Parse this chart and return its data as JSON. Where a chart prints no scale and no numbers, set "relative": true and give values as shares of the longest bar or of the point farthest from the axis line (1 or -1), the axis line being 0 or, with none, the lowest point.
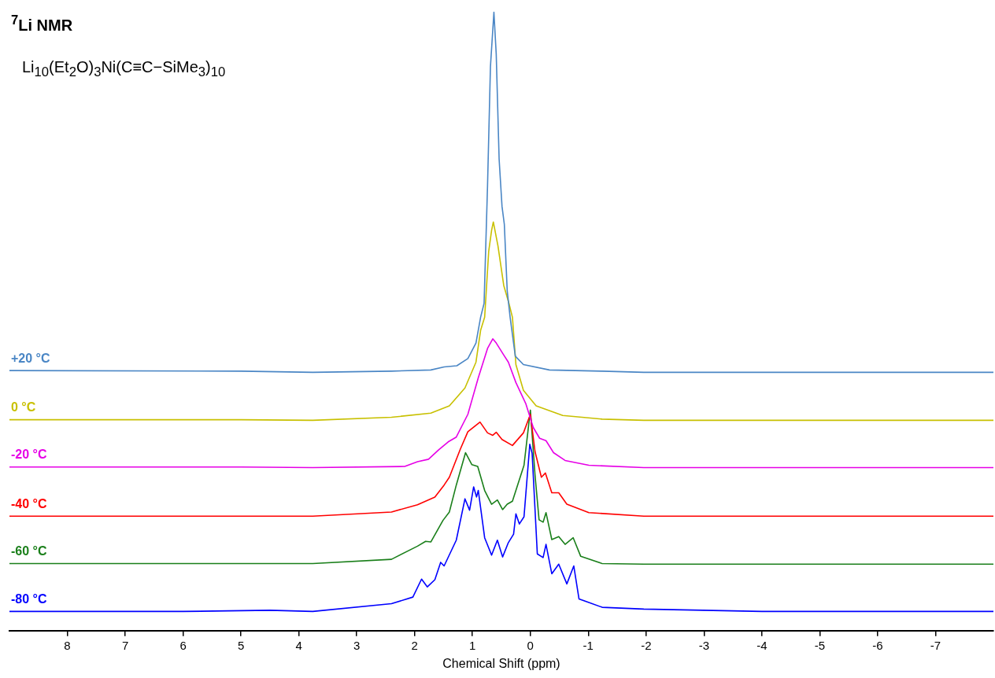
{
  "chart_data": {
    "type": "line",
    "title": "$^{7}$Li NMR",
    "xlabel": "Chemical Shift (ppm)",
    "relative": true,
    "annotations": [
      "Li$_{10}$(Et$_{2}$O)$_{3}$Ni(C≡C−SiMe$_{3}$)$_{10}$"
    ],
    "xlim": [
      9.0,
      -8.0
    ],
    "xticks": [
      8,
      7,
      6,
      5,
      4,
      3,
      2,
      1,
      0,
      -1,
      -2,
      -3,
      -4,
      -5,
      -6,
      -7
    ],
    "series": [
      {
        "name": "+20 °C",
        "color": "#4a86c5",
        "x": [
          9.0,
          5.0,
          3.76,
          2.4,
          1.72,
          1.49,
          1.27,
          1.08,
          0.94,
          0.86,
          0.8,
          0.74,
          0.69,
          0.63,
          0.59,
          0.54,
          0.49,
          0.45,
          0.4,
          0.35,
          0.26,
          0.12,
          -0.33,
          -1.24,
          -1.96,
          -8.0
        ],
        "values": [
          0.402,
          0.401,
          0.399,
          0.401,
          0.403,
          0.408,
          0.41,
          0.422,
          0.448,
          0.491,
          0.514,
          0.711,
          0.909,
          1.0,
          0.93,
          0.755,
          0.676,
          0.646,
          0.535,
          0.491,
          0.426,
          0.412,
          0.403,
          0.401,
          0.399,
          0.399
        ]
      },
      {
        "name": "0 °C",
        "color": "#c8c000",
        "x": [
          9.0,
          5.0,
          3.76,
          2.4,
          1.72,
          1.4,
          1.13,
          0.94,
          0.86,
          0.79,
          0.72,
          0.67,
          0.64,
          0.56,
          0.46,
          0.37,
          0.31,
          0.25,
          0.12,
          -0.1,
          -0.56,
          -1.24,
          -1.96,
          -8.0
        ],
        "values": [
          0.32,
          0.32,
          0.319,
          0.324,
          0.331,
          0.343,
          0.373,
          0.416,
          0.469,
          0.491,
          0.601,
          0.636,
          0.65,
          0.61,
          0.544,
          0.514,
          0.491,
          0.412,
          0.369,
          0.343,
          0.327,
          0.321,
          0.319,
          0.319
        ]
      },
      {
        "name": "-20 °C",
        "color": "#e600e6",
        "x": [
          9.0,
          5.0,
          3.76,
          2.17,
          1.95,
          1.76,
          1.58,
          1.42,
          1.28,
          1.08,
          0.9,
          0.74,
          0.65,
          0.59,
          0.46,
          0.38,
          0.25,
          0.08,
          -0.05,
          -0.16,
          -0.27,
          -0.4,
          -0.6,
          -1.01,
          -1.96,
          -8.0
        ],
        "values": [
          0.241,
          0.241,
          0.24,
          0.242,
          0.25,
          0.254,
          0.27,
          0.283,
          0.291,
          0.329,
          0.39,
          0.439,
          0.455,
          0.448,
          0.428,
          0.416,
          0.382,
          0.347,
          0.307,
          0.289,
          0.285,
          0.265,
          0.252,
          0.244,
          0.24,
          0.24
        ]
      },
      {
        "name": "-40 °C",
        "color": "#ff0000",
        "x": [
          9.0,
          5.0,
          3.76,
          2.4,
          1.95,
          1.65,
          1.49,
          1.4,
          1.21,
          1.08,
          0.87,
          0.74,
          0.65,
          0.59,
          0.49,
          0.31,
          0.12,
          0.0,
          -0.08,
          -0.19,
          -0.26,
          -0.37,
          -0.49,
          -0.63,
          -1.01,
          -1.96,
          -8.0
        ],
        "values": [
          0.159,
          0.159,
          0.159,
          0.166,
          0.178,
          0.191,
          0.211,
          0.224,
          0.271,
          0.3,
          0.316,
          0.298,
          0.294,
          0.299,
          0.287,
          0.277,
          0.298,
          0.329,
          0.267,
          0.224,
          0.231,
          0.198,
          0.198,
          0.179,
          0.165,
          0.159,
          0.159
        ]
      },
      {
        "name": "-60 °C",
        "color": "#1a7f1a",
        "x": [
          9.0,
          5.0,
          3.76,
          2.4,
          1.95,
          1.81,
          1.72,
          1.51,
          1.4,
          1.28,
          1.12,
          1.01,
          0.91,
          0.79,
          0.67,
          0.57,
          0.48,
          0.4,
          0.31,
          0.11,
          0.0,
          -0.08,
          -0.15,
          -0.22,
          -0.27,
          -0.37,
          -0.49,
          -0.6,
          -0.74,
          -0.87,
          -1.24,
          -1.96,
          -8.0
        ],
        "values": [
          0.08,
          0.08,
          0.08,
          0.087,
          0.109,
          0.117,
          0.116,
          0.152,
          0.166,
          0.211,
          0.265,
          0.245,
          0.242,
          0.202,
          0.179,
          0.186,
          0.17,
          0.179,
          0.184,
          0.244,
          0.336,
          0.228,
          0.153,
          0.149,
          0.165,
          0.12,
          0.125,
          0.112,
          0.123,
          0.092,
          0.08,
          0.079,
          0.079
        ]
      },
      {
        "name": "-80 °C",
        "color": "#0000ff",
        "x": [
          9.0,
          6.0,
          4.5,
          3.76,
          2.4,
          2.03,
          1.88,
          1.78,
          1.65,
          1.55,
          1.49,
          1.28,
          1.13,
          1.05,
          0.98,
          0.93,
          0.9,
          0.79,
          0.67,
          0.57,
          0.48,
          0.38,
          0.29,
          0.25,
          0.19,
          0.11,
          0.01,
          -0.03,
          -0.12,
          -0.22,
          -0.27,
          -0.37,
          -0.49,
          -0.63,
          -0.75,
          -0.84,
          -1.24,
          -1.96,
          -4.0,
          -8.0
        ],
        "values": [
          0.0,
          0.0,
          0.002,
          0.0,
          0.013,
          0.024,
          0.054,
          0.041,
          0.053,
          0.082,
          0.076,
          0.119,
          0.188,
          0.169,
          0.208,
          0.191,
          0.202,
          0.123,
          0.094,
          0.119,
          0.091,
          0.115,
          0.129,
          0.163,
          0.146,
          0.158,
          0.279,
          0.264,
          0.096,
          0.09,
          0.112,
          0.063,
          0.079,
          0.046,
          0.076,
          0.021,
          0.007,
          0.004,
          0.0,
          0.0
        ]
      }
    ]
  }
}
